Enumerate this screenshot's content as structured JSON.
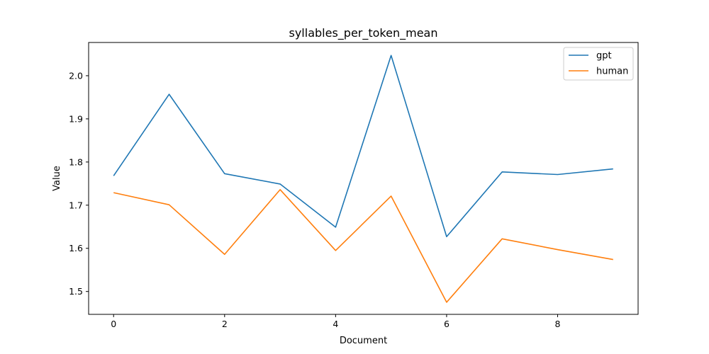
{
  "chart_data": {
    "type": "line",
    "title": "syllables_per_token_mean",
    "xlabel": "Document",
    "ylabel": "Value",
    "x": [
      0,
      1,
      2,
      3,
      4,
      5,
      6,
      7,
      8,
      9
    ],
    "xlim": [
      -0.45,
      9.45
    ],
    "ylim": [
      1.447,
      2.077
    ],
    "xticks": [
      0,
      2,
      4,
      6,
      8
    ],
    "yticks": [
      1.5,
      1.6,
      1.7,
      1.8,
      1.9,
      2.0
    ],
    "xtick_labels": [
      "0",
      "2",
      "4",
      "6",
      "8"
    ],
    "ytick_labels": [
      "1.5",
      "1.6",
      "1.7",
      "1.8",
      "1.9",
      "2.0"
    ],
    "grid": false,
    "legend_position": "top-right",
    "series": [
      {
        "name": "gpt",
        "color": "#1f77b4",
        "values": [
          1.768,
          1.957,
          1.773,
          1.749,
          1.649,
          2.047,
          1.627,
          1.777,
          1.771,
          1.784
        ]
      },
      {
        "name": "human",
        "color": "#ff7f0e",
        "values": [
          1.729,
          1.701,
          1.586,
          1.736,
          1.595,
          1.721,
          1.475,
          1.622,
          1.597,
          1.574
        ]
      }
    ]
  }
}
